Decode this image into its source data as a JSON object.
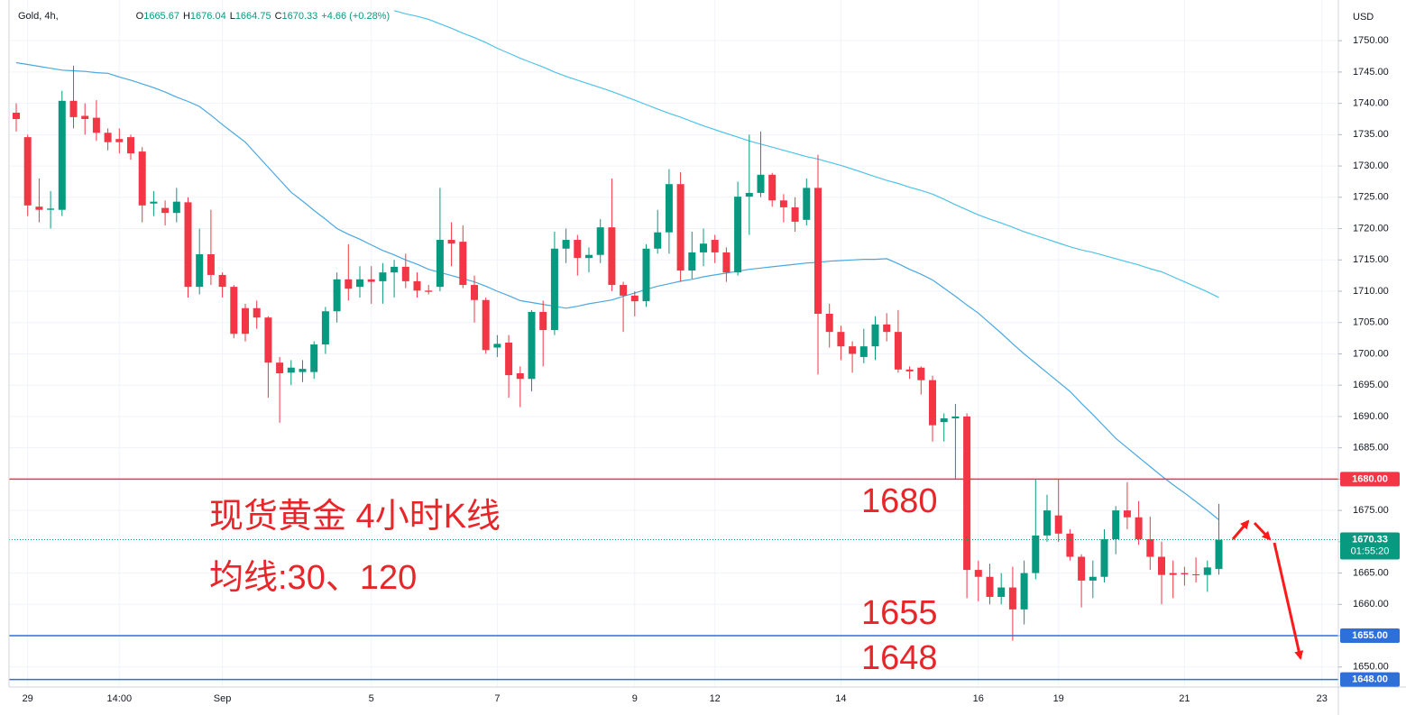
{
  "header": {
    "symbol": "Gold, 4h,",
    "ohlc": [
      {
        "label": "O",
        "value": "1665.67"
      },
      {
        "label": "H",
        "value": "1676.04"
      },
      {
        "label": "L",
        "value": "1664.75"
      },
      {
        "label": "C",
        "value": "1670.33"
      }
    ],
    "change": "+4.66 (+0.28%)"
  },
  "chart_data": {
    "type": "candlestick",
    "currency": "USD",
    "categories": [
      null,
      "29",
      null,
      null,
      null,
      null,
      null,
      null,
      null,
      "14:00",
      null,
      null,
      null,
      null,
      null,
      null,
      null,
      null,
      "Sep",
      null,
      null,
      null,
      null,
      null,
      null,
      null,
      null,
      null,
      null,
      null,
      null,
      "5",
      null,
      null,
      null,
      null,
      null,
      null,
      null,
      null,
      null,
      null,
      "7",
      null,
      null,
      null,
      null,
      null,
      null,
      null,
      null,
      null,
      null,
      null,
      "9",
      null,
      null,
      null,
      null,
      null,
      null,
      "12",
      null,
      null,
      null,
      null,
      null,
      null,
      null,
      null,
      null,
      null,
      "14",
      null,
      null,
      null,
      null,
      null,
      null,
      null,
      null,
      null,
      null,
      null,
      "16",
      null,
      null,
      null,
      null,
      null,
      null,
      "19",
      null,
      null,
      null,
      null,
      null,
      null,
      null,
      null,
      null,
      null,
      "21",
      null,
      null,
      null,
      null,
      null,
      null,
      null,
      null,
      null,
      null,
      null,
      "23",
      null
    ],
    "open": [
      1738.5,
      1734.6,
      1723.5,
      1723,
      1723,
      1740.4,
      1738,
      1737.7,
      1735.3,
      1734.3,
      1734.6,
      1732.3,
      1724,
      1723.3,
      1722.5,
      1724.2,
      1710.7,
      1715.9,
      1712.6,
      1710.7,
      1707.3,
      1707.3,
      1705.8,
      1698.6,
      1697,
      1697.1,
      1697.1,
      1701.5,
      1706.8,
      1711.9,
      1710.7,
      1711.9,
      1711.6,
      1713,
      1713.9,
      1711.6,
      1710.1,
      1710.7,
      1718.2,
      1717.9,
      1711,
      1708.6,
      1701,
      1701.8,
      1696.9,
      1696,
      1706.7,
      1703.8,
      1716.8,
      1718.2,
      1715.3,
      1715.8,
      1720.2,
      1711,
      1709.3,
      1708.4,
      1716.8,
      1719.4,
      1727.1,
      1713.3,
      1716.2,
      1718.2,
      1716.2,
      1713,
      1725.1,
      1725.7,
      1728.6,
      1724.5,
      1723.4,
      1721.4,
      1726.5,
      1706.4,
      1703.5,
      1701.2,
      1699.5,
      1701.2,
      1704.7,
      1703.5,
      1697.5,
      1697.8,
      1695.8,
      1689.1,
      1689.7,
      1690,
      1665.5,
      1664.4,
      1661.2,
      1662.7,
      1659.2,
      1665,
      1671,
      1674.2,
      1671.3,
      1667.6,
      1663.8,
      1664.4,
      1670.4,
      1675,
      1673.9,
      1670.4,
      1667.6,
      1665,
      1665,
      1664.8,
      1664.7,
      1665.67,
      null,
      null,
      null,
      null,
      null,
      null,
      null,
      null,
      null,
      null
    ],
    "high": [
      1740,
      1735,
      1728,
      1726,
      1742,
      1746,
      1740,
      1740.5,
      1736,
      1736,
      1735,
      1733,
      1726,
      1724.5,
      1726.5,
      1725,
      1720,
      1723,
      1713,
      1711,
      1708,
      1708.5,
      1706,
      1699.5,
      1699,
      1699,
      1702,
      1707.5,
      1713,
      1717.5,
      1714,
      1714,
      1714.5,
      1715,
      1716,
      1713,
      1711,
      1726.5,
      1721,
      1720.5,
      1712.5,
      1709,
      1703,
      1703,
      1698,
      1707,
      1708.5,
      1719.5,
      1720,
      1719,
      1717,
      1721.5,
      1728,
      1711.5,
      1710,
      1717.5,
      1723,
      1729.5,
      1729,
      1719.5,
      1720,
      1719,
      1717,
      1727.5,
      1735,
      1735.5,
      1728.9,
      1725.5,
      1725,
      1728,
      1731.8,
      1708,
      1704.5,
      1702,
      1704,
      1706,
      1706.5,
      1707,
      1698,
      1698,
      1696.5,
      1690.5,
      1692,
      1690.5,
      1667,
      1666.5,
      1665,
      1666,
      1667,
      1680,
      1677.5,
      1680,
      1672,
      1668,
      1667,
      1672,
      1675.7,
      1679.5,
      1676.5,
      1674,
      1670,
      1667,
      1666,
      1667.5,
      1667,
      1676.04,
      null,
      null,
      null,
      null,
      null,
      null,
      null,
      null,
      null,
      null
    ],
    "low": [
      1735.5,
      1722,
      1721,
      1720,
      1722,
      1736,
      1735,
      1734,
      1732.5,
      1732,
      1731,
      1721,
      1722,
      1720.5,
      1721,
      1709,
      1709.5,
      1711,
      1709,
      1702.5,
      1702,
      1704,
      1693,
      1689,
      1695,
      1695.5,
      1696,
      1700,
      1705,
      1708.5,
      1709,
      1708,
      1708,
      1709,
      1710.5,
      1709,
      1709.5,
      1710,
      1714,
      1710.5,
      1705,
      1700,
      1699.5,
      1693,
      1691.5,
      1694,
      1698,
      1703,
      1714.5,
      1712.5,
      1713,
      1714.5,
      1710,
      1703.5,
      1706,
      1707.5,
      1716,
      1716,
      1711.5,
      1712,
      1714,
      1714.5,
      1711.5,
      1712.5,
      1719,
      1725,
      1723.5,
      1721,
      1719.5,
      1720.5,
      1696.7,
      1701,
      1699,
      1697,
      1698.5,
      1699,
      1702,
      1697,
      1696,
      1693.5,
      1686,
      1686,
      1680,
      1661,
      1660.5,
      1660,
      1660,
      1654.2,
      1656.8,
      1664,
      1670,
      1670,
      1667,
      1659.5,
      1661,
      1663.5,
      1668,
      1672,
      1669.5,
      1665.5,
      1660,
      1661,
      1663,
      1663.5,
      1662,
      1664.75,
      null,
      null,
      null,
      null,
      null,
      null,
      null,
      null,
      null,
      null
    ],
    "close": [
      1737.5,
      1723.7,
      1723,
      1723.2,
      1740.4,
      1737.8,
      1737.5,
      1735.3,
      1733.8,
      1733.8,
      1732,
      1723.7,
      1724.3,
      1722.5,
      1724.3,
      1710.7,
      1715.9,
      1712.6,
      1710.7,
      1703.2,
      1703.2,
      1705.8,
      1698.6,
      1696.9,
      1697.8,
      1697.6,
      1701.5,
      1706.8,
      1711.9,
      1710.4,
      1711.9,
      1711.5,
      1713,
      1713.9,
      1711.6,
      1710.1,
      1709.9,
      1718.2,
      1717.6,
      1711,
      1708.6,
      1700.6,
      1701.6,
      1696.6,
      1696,
      1706.7,
      1703.8,
      1716.8,
      1718.2,
      1715.3,
      1715.8,
      1720.2,
      1711,
      1709.3,
      1708.4,
      1716.8,
      1719.4,
      1727.1,
      1713.3,
      1716.2,
      1717.6,
      1716.2,
      1713,
      1725.1,
      1725.7,
      1728.6,
      1724.5,
      1723.4,
      1721.1,
      1726.5,
      1706.4,
      1703.5,
      1701.2,
      1700,
      1701.2,
      1704.7,
      1703.5,
      1697.5,
      1697.2,
      1695.8,
      1688.6,
      1689.7,
      1690,
      1665.5,
      1664.4,
      1661.2,
      1662.7,
      1659.2,
      1665,
      1671,
      1675,
      1671.3,
      1667.6,
      1663.8,
      1664.4,
      1670.4,
      1675,
      1673.9,
      1670.4,
      1667.6,
      1664.7,
      1664.7,
      1664.8,
      1664.7,
      1665.9,
      1670.33,
      null,
      null,
      null,
      null,
      null,
      null,
      null,
      null,
      null,
      null
    ],
    "up_color": "#089981",
    "down_color": "#f23645",
    "lines": [
      {
        "color": "#4aa8e0",
        "values": [
          1746.5,
          1746.2,
          1745.9,
          1745.6,
          1745.3,
          1745.2,
          1745.1,
          1744.9,
          1744.8,
          1744.2,
          1743.7,
          1743.1,
          1742.5,
          1741.8,
          1741.0,
          1740.3,
          1739.5,
          1738.1,
          1736.6,
          1735.2,
          1733.8,
          1731.8,
          1729.8,
          1727.8,
          1725.8,
          1724.4,
          1722.9,
          1721.5,
          1720,
          1719.1,
          1718.3,
          1717.4,
          1716.5,
          1715.8,
          1715,
          1714.3,
          1713.5,
          1713,
          1712.5,
          1712,
          1711.5,
          1710.8,
          1710,
          1709.3,
          1708.5,
          1708.2,
          1707.9,
          1707.6,
          1707.3,
          1707.6,
          1708,
          1708.3,
          1708.6,
          1709.2,
          1709.7,
          1710.3,
          1710.8,
          1711.2,
          1711.6,
          1711.9,
          1712.3,
          1712.6,
          1712.9,
          1713.2,
          1713.5,
          1713.7,
          1713.9,
          1714.1,
          1714.3,
          1714.5,
          1714.6,
          1714.8,
          1714.9,
          1715,
          1715.1,
          1715.1,
          1715.2,
          1714.4,
          1713.5,
          1712.7,
          1711.8,
          1710.5,
          1709.2,
          1707.8,
          1706.5,
          1704.9,
          1703.3,
          1701.6,
          1700,
          1698.5,
          1697,
          1695.5,
          1694,
          1692.1,
          1690.3,
          1688.4,
          1686.5,
          1685,
          1683.5,
          1682,
          1680.5,
          1679.1,
          1677.8,
          1676.4,
          1675,
          1673.5,
          null,
          null,
          null,
          null,
          null,
          null,
          null,
          null,
          null,
          null
        ]
      },
      {
        "color": "#4fc3e8",
        "values": [
          null,
          null,
          null,
          null,
          null,
          null,
          null,
          null,
          null,
          null,
          null,
          null,
          null,
          null,
          null,
          null,
          null,
          null,
          null,
          null,
          null,
          null,
          null,
          null,
          null,
          null,
          null,
          null,
          null,
          null,
          null,
          null,
          null,
          1754.8,
          1754.3,
          1753.9,
          1753.4,
          1752.7,
          1752,
          1751.2,
          1750.5,
          1749.7,
          1748.8,
          1748,
          1747.2,
          1746.5,
          1745.8,
          1745,
          1744.3,
          1743.7,
          1743.1,
          1742.5,
          1741.9,
          1741.2,
          1740.5,
          1739.8,
          1739.1,
          1738.4,
          1737.8,
          1737.1,
          1736.4,
          1735.8,
          1735.2,
          1734.6,
          1734,
          1733.5,
          1733,
          1732.5,
          1732,
          1731.5,
          1731.1,
          1730.6,
          1730.1,
          1729.5,
          1728.9,
          1728.3,
          1727.7,
          1727.2,
          1726.6,
          1726.1,
          1725.5,
          1724.7,
          1723.8,
          1723,
          1722.2,
          1721.5,
          1720.9,
          1720.2,
          1719.5,
          1718.9,
          1718.3,
          1717.7,
          1717.1,
          1716.6,
          1716.2,
          1715.7,
          1715.2,
          1714.7,
          1714.2,
          1713.6,
          1713.1,
          1712.3,
          1711.5,
          1710.7,
          1709.9,
          1709,
          null,
          null,
          null,
          null,
          null,
          null,
          null,
          null,
          null,
          null
        ]
      }
    ],
    "hlines": [
      {
        "value": 1680,
        "label": "1680.00",
        "color": "#f23645"
      },
      {
        "value": 1655,
        "label": "1655.00",
        "color": "#2f6fd8"
      },
      {
        "value": 1648,
        "label": "1648.00",
        "color": "#2f6fd8"
      }
    ],
    "last_price": 1670.33,
    "countdown": "01:55:20",
    "annotations": [
      "现货黄金 4小时K线",
      "均线:30、120",
      "1680",
      "1655",
      "1648"
    ],
    "ylim": [
      1646.8,
      1756.5
    ],
    "yticks": [
      {
        "value": 1650,
        "label": "1650.00"
      },
      {
        "value": 1655,
        "label": "1655.00"
      },
      {
        "value": 1660,
        "label": "1660.00"
      },
      {
        "value": 1665,
        "label": "1665.00"
      },
      {
        "value": 1670,
        "label": "1670.00"
      },
      {
        "value": 1675,
        "label": "1675.00"
      },
      {
        "value": 1680,
        "label": "1680.00"
      },
      {
        "value": 1685,
        "label": "1685.00"
      },
      {
        "value": 1690,
        "label": "1690.00"
      },
      {
        "value": 1695,
        "label": "1695.00"
      },
      {
        "value": 1700,
        "label": "1700.00"
      },
      {
        "value": 1705,
        "label": "1705.00"
      },
      {
        "value": 1710,
        "label": "1710.00"
      },
      {
        "value": 1715,
        "label": "1715.00"
      },
      {
        "value": 1720,
        "label": "1720.00"
      },
      {
        "value": 1725,
        "label": "1725.00"
      },
      {
        "value": 1730,
        "label": "1730.00"
      },
      {
        "value": 1735,
        "label": "1735.00"
      },
      {
        "value": 1740,
        "label": "1740.00"
      },
      {
        "value": 1745,
        "label": "1745.00"
      },
      {
        "value": 1750,
        "label": "1750.00"
      }
    ],
    "grid": true
  }
}
